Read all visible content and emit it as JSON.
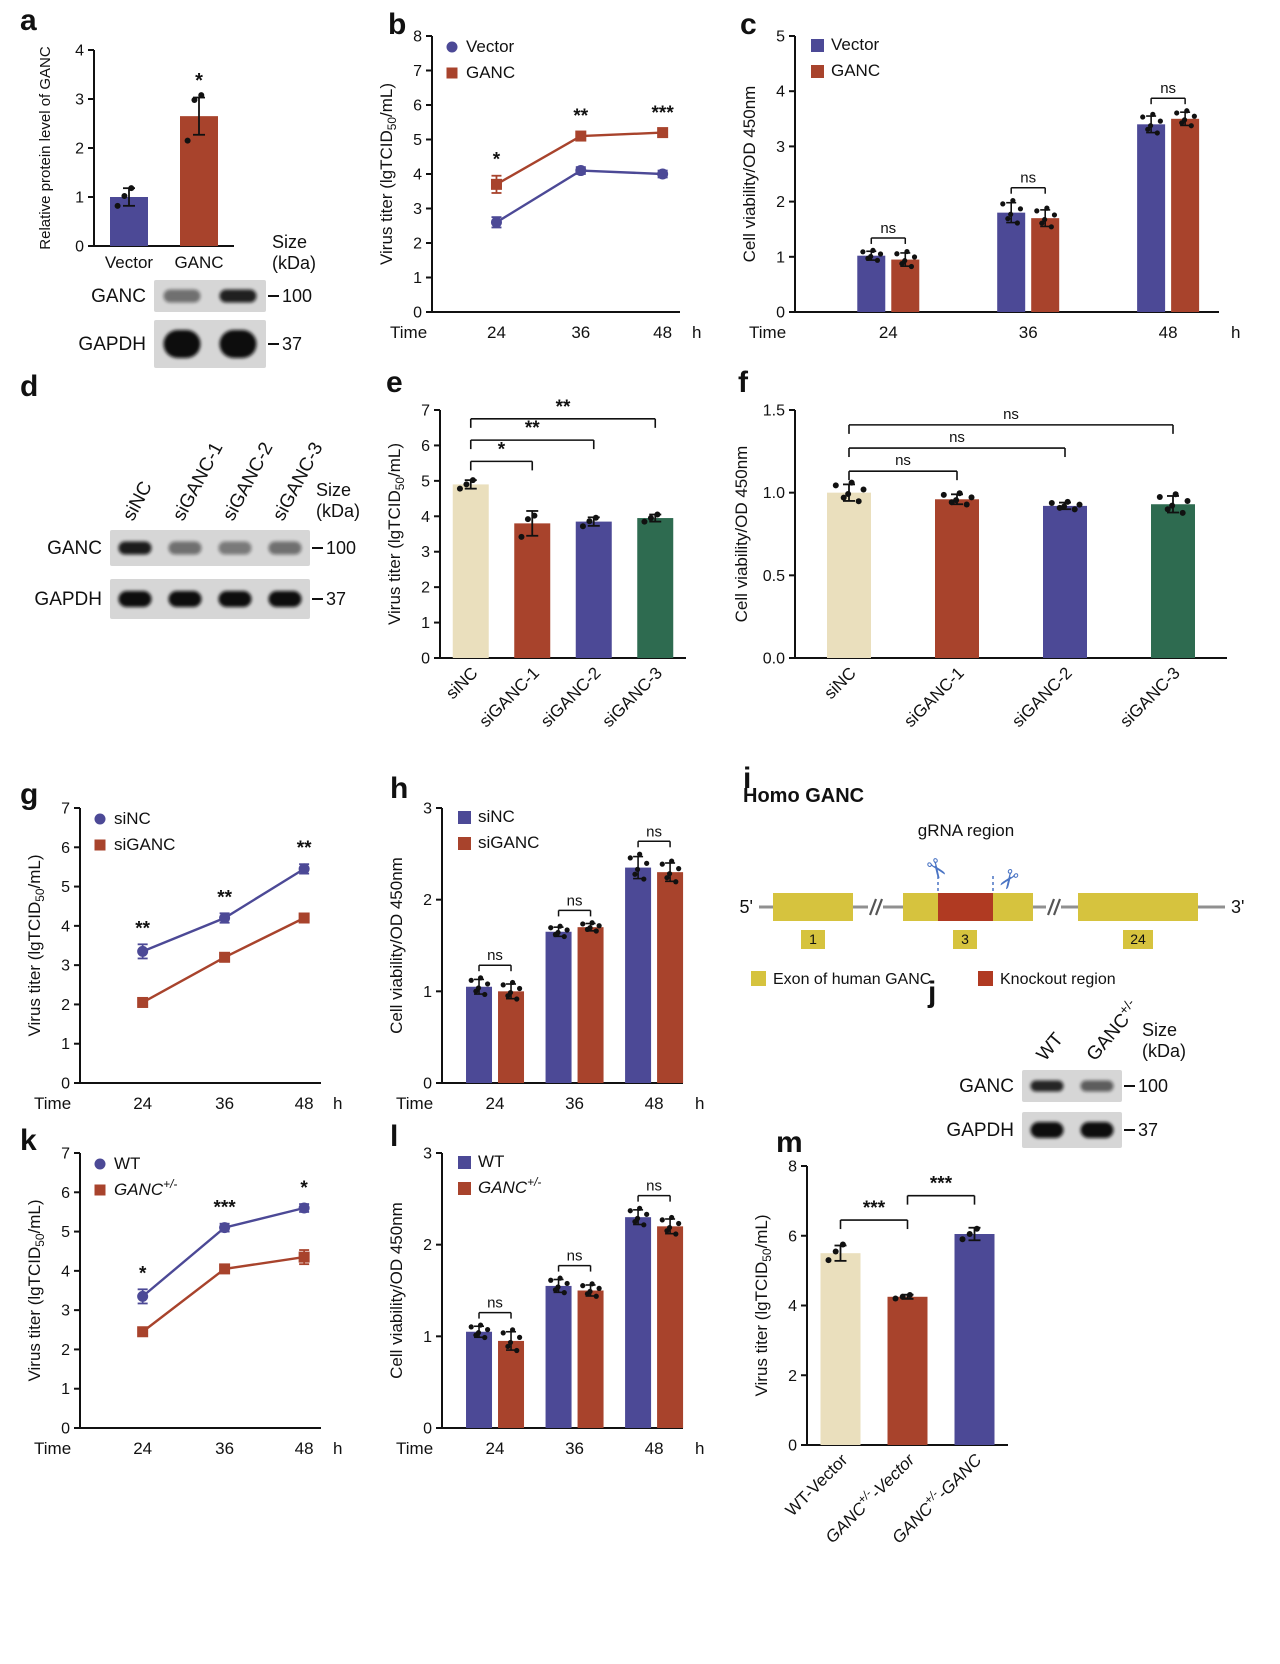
{
  "panel_letters": {
    "a": "a",
    "b": "b",
    "c": "c",
    "d": "d",
    "e": "e",
    "f": "f",
    "g": "g",
    "h": "h",
    "i": "i",
    "j": "j",
    "k": "k",
    "l": "l",
    "m": "m"
  },
  "colors": {
    "blue": "#4c4996",
    "red": "#a8432c",
    "tan": "#eadfbd",
    "green": "#2e6b50",
    "exon_yellow": "#d6c33e",
    "knockout_red": "#b03a22",
    "scissors_blue": "#4a74c4",
    "text": "#111111"
  },
  "chart_data": [
    {
      "id": "a",
      "type": "bar",
      "ylabel": "Relative protein level of GANC",
      "ylim": [
        0,
        4
      ],
      "ytick_step": 1,
      "categories": [
        "Vector",
        "GANC"
      ],
      "values": [
        1.0,
        2.65
      ],
      "errors": [
        0.18,
        0.38
      ],
      "bar_colors": [
        "blue",
        "red"
      ],
      "points": [
        [
          0.82,
          1.02,
          1.18
        ],
        [
          2.15,
          2.98,
          3.08
        ]
      ],
      "sig": [
        {
          "bar": 1,
          "text": "*"
        }
      ]
    },
    {
      "id": "b",
      "type": "line",
      "ylabel": "Virus titer (lgTCID_{50}/mL)",
      "ylim": [
        0,
        8
      ],
      "ytick_step": 1,
      "x_prefix": "Time",
      "x_labels": [
        "24",
        "36",
        "48"
      ],
      "x_suffix": "h",
      "series": [
        {
          "name": "Vector",
          "marker": "circle",
          "color": "blue",
          "values": [
            2.6,
            4.1,
            4.0
          ],
          "errors": [
            0.15,
            0.1,
            0.1
          ]
        },
        {
          "name": "GANC",
          "marker": "square",
          "color": "red",
          "values": [
            3.7,
            5.1,
            5.2
          ],
          "errors": [
            0.25,
            0.12,
            0.1
          ]
        }
      ],
      "sig": [
        {
          "at": 0,
          "text": "*"
        },
        {
          "at": 1,
          "text": "**"
        },
        {
          "at": 2,
          "text": "***"
        }
      ]
    },
    {
      "id": "c",
      "type": "grouped_bar",
      "ylabel": "Cell viability/OD 450nm",
      "ylim": [
        0,
        5
      ],
      "ytick_step": 1,
      "x_prefix": "Time",
      "x_labels": [
        "24",
        "36",
        "48"
      ],
      "x_suffix": "h",
      "series": [
        {
          "name": "Vector",
          "color": "blue",
          "values": [
            1.02,
            1.8,
            3.4
          ],
          "errors": [
            0.08,
            0.18,
            0.15
          ]
        },
        {
          "name": "GANC",
          "color": "red",
          "values": [
            0.95,
            1.7,
            3.5
          ],
          "errors": [
            0.12,
            0.15,
            0.12
          ]
        }
      ],
      "pair_sig": [
        "ns",
        "ns",
        "ns"
      ]
    },
    {
      "id": "e",
      "type": "bar",
      "ylabel": "Virus titer (lgTCID_{50}/mL)",
      "ylim": [
        0,
        7
      ],
      "ytick_step": 1,
      "categories": [
        "siNC",
        "siGANC-1",
        "siGANC-2",
        "siGANC-3"
      ],
      "rotate_xticks": true,
      "values": [
        4.9,
        3.8,
        3.85,
        3.95
      ],
      "errors": [
        0.12,
        0.35,
        0.12,
        0.1
      ],
      "bar_colors": [
        "tan",
        "red",
        "blue",
        "green"
      ],
      "points": [
        [
          4.78,
          4.9,
          5.02
        ],
        [
          3.42,
          3.92,
          4.02
        ],
        [
          3.72,
          3.86,
          3.96
        ],
        [
          3.85,
          3.95,
          4.05
        ]
      ],
      "brackets": [
        {
          "from": 0,
          "to": 1,
          "text": "*",
          "y": 5.55
        },
        {
          "from": 0,
          "to": 2,
          "text": "**",
          "y": 6.15
        },
        {
          "from": 0,
          "to": 3,
          "text": "**",
          "y": 6.75
        }
      ]
    },
    {
      "id": "f",
      "type": "bar",
      "ylabel": "Cell viability/OD 450nm",
      "ylim": [
        0,
        1.5
      ],
      "ytick_step": 0.5,
      "ytick_decimals": 1,
      "categories": [
        "siNC",
        "siGANC-1",
        "siGANC-2",
        "siGANC-3"
      ],
      "rotate_xticks": true,
      "values": [
        1.0,
        0.96,
        0.92,
        0.93
      ],
      "errors": [
        0.05,
        0.03,
        0.02,
        0.05
      ],
      "bar_colors": [
        "tan",
        "red",
        "blue",
        "green"
      ],
      "n_points": 6,
      "brackets": [
        {
          "from": 0,
          "to": 1,
          "text": "ns",
          "y": 1.13
        },
        {
          "from": 0,
          "to": 2,
          "text": "ns",
          "y": 1.27
        },
        {
          "from": 0,
          "to": 3,
          "text": "ns",
          "y": 1.41
        }
      ]
    },
    {
      "id": "g",
      "type": "line",
      "ylabel": "Virus titer (lgTCID_{50}/mL)",
      "ylim": [
        0,
        7
      ],
      "ytick_step": 1,
      "x_prefix": "Time",
      "x_labels": [
        "24",
        "36",
        "48"
      ],
      "x_suffix": "h",
      "series": [
        {
          "name": "siNC",
          "marker": "circle",
          "color": "blue",
          "values": [
            3.35,
            4.2,
            5.45
          ],
          "errors": [
            0.18,
            0.12,
            0.12
          ]
        },
        {
          "name": "siGANC",
          "marker": "square",
          "color": "red",
          "values": [
            2.05,
            3.2,
            4.2
          ],
          "errors": [
            0.08,
            0.08,
            0.1
          ]
        }
      ],
      "sig": [
        {
          "at": 0,
          "text": "**"
        },
        {
          "at": 1,
          "text": "**"
        },
        {
          "at": 2,
          "text": "**"
        }
      ]
    },
    {
      "id": "h",
      "type": "grouped_bar",
      "ylabel": "Cell viability/OD 450nm",
      "ylim": [
        0,
        3
      ],
      "ytick_step": 1,
      "x_prefix": "Time",
      "x_labels": [
        "24",
        "36",
        "48"
      ],
      "x_suffix": "h",
      "series": [
        {
          "name": "siNC",
          "color": "blue",
          "values": [
            1.05,
            1.65,
            2.35
          ],
          "errors": [
            0.08,
            0.05,
            0.12
          ]
        },
        {
          "name": "siGANC",
          "color": "red",
          "values": [
            1.0,
            1.7,
            2.3
          ],
          "errors": [
            0.08,
            0.04,
            0.1
          ]
        }
      ],
      "pair_sig": [
        "ns",
        "ns",
        "ns"
      ]
    },
    {
      "id": "k",
      "type": "line",
      "ylabel": "Virus titer (lgTCID_{50}/mL)",
      "ylim": [
        0,
        7
      ],
      "ytick_step": 1,
      "x_prefix": "Time",
      "x_labels": [
        "24",
        "36",
        "48"
      ],
      "x_suffix": "h",
      "series": [
        {
          "name": "WT",
          "marker": "circle",
          "color": "blue",
          "values": [
            3.35,
            5.1,
            5.6
          ],
          "errors": [
            0.18,
            0.1,
            0.1
          ]
        },
        {
          "name": "GANC^{+/-}",
          "italic": true,
          "marker": "square",
          "color": "red",
          "values": [
            2.45,
            4.05,
            4.35
          ],
          "errors": [
            0.08,
            0.08,
            0.18
          ]
        }
      ],
      "sig": [
        {
          "at": 0,
          "text": "*"
        },
        {
          "at": 1,
          "text": "***"
        },
        {
          "at": 2,
          "text": "*"
        }
      ]
    },
    {
      "id": "l",
      "type": "grouped_bar",
      "ylabel": "Cell viability/OD 450nm",
      "ylim": [
        0,
        3
      ],
      "ytick_step": 1,
      "x_prefix": "Time",
      "x_labels": [
        "24",
        "36",
        "48"
      ],
      "x_suffix": "h",
      "series": [
        {
          "name": "WT",
          "color": "blue",
          "values": [
            1.05,
            1.55,
            2.3
          ],
          "errors": [
            0.06,
            0.07,
            0.08
          ]
        },
        {
          "name": "GANC^{+/-}",
          "italic": true,
          "color": "red",
          "values": [
            0.95,
            1.5,
            2.2
          ],
          "errors": [
            0.1,
            0.06,
            0.08
          ]
        }
      ],
      "pair_sig": [
        "ns",
        "ns",
        "ns"
      ]
    },
    {
      "id": "m",
      "type": "bar",
      "ylabel": "Virus titer (lgTCID_{50}/mL)",
      "ylim": [
        0,
        8
      ],
      "ytick_step": 2,
      "categories": [
        "WT-Vector",
        "GANC^{+/-}-Vector",
        "GANC^{+/-}-GANC"
      ],
      "cat_italics": [
        false,
        true,
        true
      ],
      "rotate_xticks": true,
      "values": [
        5.5,
        4.25,
        6.05
      ],
      "errors": [
        0.22,
        0.06,
        0.18
      ],
      "bar_colors": [
        "tan",
        "red",
        "blue"
      ],
      "points": [
        [
          5.3,
          5.55,
          5.75
        ],
        [
          4.2,
          4.25,
          4.3
        ],
        [
          5.9,
          6.05,
          6.2
        ]
      ],
      "brackets": [
        {
          "from": 0,
          "to": 1,
          "text": "***",
          "y": 6.45
        },
        {
          "from": 1,
          "to": 2,
          "text": "***",
          "y": 7.15
        }
      ]
    }
  ],
  "blots": [
    {
      "id": "a",
      "lane_labels": [],
      "size_label": [
        "Size",
        "(kDa)"
      ],
      "rows": [
        {
          "label": "GANC",
          "kda": "100",
          "bands": [
            0.5,
            0.9
          ]
        },
        {
          "label": "GAPDH",
          "kda": "37",
          "bands": [
            1,
            1
          ]
        }
      ]
    },
    {
      "id": "d",
      "lane_labels": [
        "siNC",
        "siGANC-1",
        "siGANC-2",
        "siGANC-3"
      ],
      "size_label": [
        "Size",
        "(kDa)"
      ],
      "rows": [
        {
          "label": "GANC",
          "kda": "100",
          "bands": [
            0.92,
            0.5,
            0.45,
            0.5
          ]
        },
        {
          "label": "GAPDH",
          "kda": "37",
          "bands": [
            1,
            1,
            1,
            1
          ]
        }
      ]
    },
    {
      "id": "j",
      "lane_labels": [
        "WT",
        "GANC^{+/-}"
      ],
      "size_label": [
        "Size",
        "(kDa)"
      ],
      "rows": [
        {
          "label": "GANC",
          "kda": "100",
          "bands": [
            0.88,
            0.6
          ]
        },
        {
          "label": "GAPDH",
          "kda": "37",
          "bands": [
            1,
            1
          ]
        }
      ]
    }
  ],
  "diagram": {
    "title": "Homo GANC",
    "grna_label": "gRNA region",
    "five": "5'",
    "three": "3'",
    "exons": [
      "1",
      "3",
      "24"
    ],
    "legend": [
      {
        "color": "exon_yellow",
        "label": "Exon of human GANC"
      },
      {
        "color": "knockout_red",
        "label": "Knockout region"
      }
    ]
  }
}
